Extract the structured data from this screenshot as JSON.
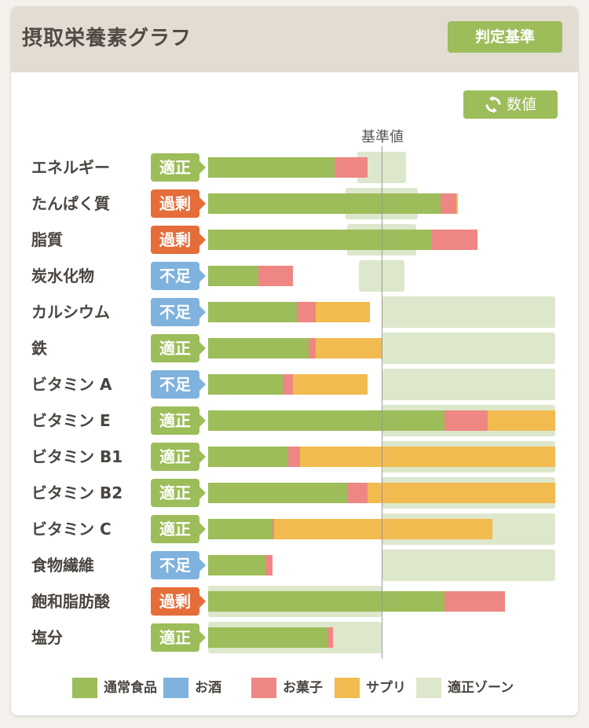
{
  "header": {
    "title": "摂取栄養素グラフ",
    "criteria_button": "判定基準"
  },
  "toolbar": {
    "values_button": "数値"
  },
  "colors": {
    "food": "#9cbd59",
    "alcohol": "#7fb2dd",
    "sweets": "#ee8783",
    "supplement": "#f2bb50",
    "zone": "#dde7cc",
    "status_ok": "#9cbd59",
    "status_excess": "#e56d3a",
    "status_lack": "#7fb2dd"
  },
  "chart_data": {
    "type": "bar",
    "reference_label": "基準値",
    "reference_value": 100,
    "x_unit": "% of reference",
    "series": [
      {
        "name": "通常食品",
        "key": "food"
      },
      {
        "name": "お酒",
        "key": "alcohol"
      },
      {
        "name": "お菓子",
        "key": "sweets"
      },
      {
        "name": "サプリ",
        "key": "supplement"
      }
    ],
    "zone_label": "適正ゾーン",
    "rows": [
      {
        "nutrient": "エネルギー",
        "status": "適正",
        "status_type": "ok",
        "food": 73,
        "alcohol": 0,
        "sweets": 19,
        "supplement": 0,
        "zone": [
          86,
          114
        ]
      },
      {
        "nutrient": "たんぱく質",
        "status": "過剰",
        "status_type": "excess",
        "food": 134,
        "alcohol": 0,
        "sweets": 9,
        "supplement": 1,
        "zone": [
          79,
          121
        ]
      },
      {
        "nutrient": "脂質",
        "status": "過剰",
        "status_type": "excess",
        "food": 129,
        "alcohol": 0,
        "sweets": 26,
        "supplement": 0,
        "zone": [
          80,
          120
        ]
      },
      {
        "nutrient": "炭水化物",
        "status": "不足",
        "status_type": "lack",
        "food": 29,
        "alcohol": 0,
        "sweets": 20,
        "supplement": 0,
        "zone": [
          87,
          113
        ]
      },
      {
        "nutrient": "カルシウム",
        "status": "不足",
        "status_type": "lack",
        "food": 51,
        "alcohol": 0,
        "sweets": 11,
        "supplement": 31,
        "zone": [
          100,
          200
        ]
      },
      {
        "nutrient": "鉄",
        "status": "適正",
        "status_type": "ok",
        "food": 58,
        "alcohol": 0,
        "sweets": 4,
        "supplement": 38,
        "zone": [
          100,
          200
        ]
      },
      {
        "nutrient": "ビタミン A",
        "status": "不足",
        "status_type": "lack",
        "food": 43,
        "alcohol": 0,
        "sweets": 6,
        "supplement": 43,
        "zone": [
          100,
          200
        ]
      },
      {
        "nutrient": "ビタミン E",
        "status": "適正",
        "status_type": "ok",
        "food": 136,
        "alcohol": 0,
        "sweets": 25,
        "supplement": 39,
        "zone": [
          100,
          200
        ]
      },
      {
        "nutrient": "ビタミン B1",
        "status": "適正",
        "status_type": "ok",
        "food": 46,
        "alcohol": 0,
        "sweets": 7,
        "supplement": 147,
        "zone": [
          100,
          200
        ]
      },
      {
        "nutrient": "ビタミン B2",
        "status": "適正",
        "status_type": "ok",
        "food": 80,
        "alcohol": 0,
        "sweets": 12,
        "supplement": 108,
        "zone": [
          100,
          200
        ]
      },
      {
        "nutrient": "ビタミン C",
        "status": "適正",
        "status_type": "ok",
        "food": 37,
        "alcohol": 0,
        "sweets": 1,
        "supplement": 126,
        "zone": [
          100,
          200
        ]
      },
      {
        "nutrient": "食物繊維",
        "status": "不足",
        "status_type": "lack",
        "food": 33,
        "alcohol": 0,
        "sweets": 4,
        "supplement": 0,
        "zone": [
          100,
          200
        ]
      },
      {
        "nutrient": "飽和脂肪酸",
        "status": "過剰",
        "status_type": "excess",
        "food": 136,
        "alcohol": 0,
        "sweets": 35,
        "supplement": 0,
        "zone": [
          0,
          100
        ]
      },
      {
        "nutrient": "塩分",
        "status": "適正",
        "status_type": "ok",
        "food": 69,
        "alcohol": 0,
        "sweets": 3,
        "supplement": 0,
        "zone": [
          0,
          100
        ]
      }
    ]
  },
  "legend": [
    {
      "label": "通常食品",
      "color_key": "food"
    },
    {
      "label": "お酒",
      "color_key": "alcohol"
    },
    {
      "label": "お菓子",
      "color_key": "sweets"
    },
    {
      "label": "サプリ",
      "color_key": "supplement"
    },
    {
      "label": "適正ゾーン",
      "color_key": "zone"
    }
  ]
}
